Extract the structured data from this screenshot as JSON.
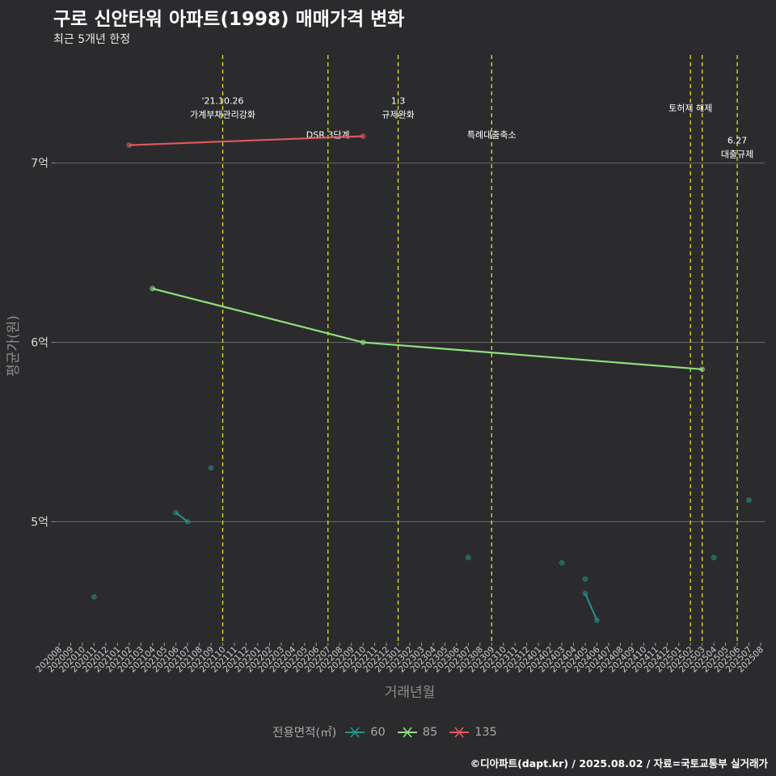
{
  "title": "구로 신안타워 아파트(1998) 매매가격 변화",
  "subtitle": "최근 5개년 한정",
  "caption": "©디아파트(dapt.kr) / 2025.08.02 / 자료=국토교통부 실거래가",
  "legend": {
    "title": "전용면적(㎡)",
    "items": [
      {
        "label": "60",
        "color": "#26938a"
      },
      {
        "label": "85",
        "color": "#8ee07e"
      },
      {
        "label": "135",
        "color": "#e0585e"
      }
    ]
  },
  "chart_data": {
    "type": "line",
    "xlabel": "거래년월",
    "ylabel": "평균가(원)",
    "x_categories": [
      "202008",
      "202009",
      "202010",
      "202011",
      "202012",
      "202101",
      "202102",
      "202103",
      "202104",
      "202105",
      "202106",
      "202107",
      "202108",
      "202109",
      "202110",
      "202111",
      "202112",
      "202201",
      "202202",
      "202203",
      "202204",
      "202205",
      "202206",
      "202207",
      "202208",
      "202209",
      "202210",
      "202211",
      "202212",
      "202301",
      "202302",
      "202303",
      "202304",
      "202305",
      "202306",
      "202307",
      "202308",
      "202309",
      "202310",
      "202311",
      "202312",
      "202401",
      "202402",
      "202403",
      "202404",
      "202405",
      "202406",
      "202407",
      "202408",
      "202409",
      "202410",
      "202411",
      "202412",
      "202501",
      "202502",
      "202503",
      "202504",
      "202505",
      "202506",
      "202507",
      "202508"
    ],
    "y_ticks": [
      {
        "value": 5,
        "label": "5억"
      },
      {
        "value": 6,
        "label": "6억"
      },
      {
        "value": 7,
        "label": "7억"
      }
    ],
    "y_range": [
      4.33,
      7.63
    ],
    "grid": "horizontal",
    "series": [
      {
        "name": "60",
        "color": "#26938a",
        "points": [
          {
            "x": "202011",
            "y": 4.58
          },
          {
            "x": "202106",
            "y": 5.05
          },
          {
            "x": "202107",
            "y": 5.0
          },
          {
            "x": "202109",
            "y": 5.3
          },
          {
            "x": "202307",
            "y": 4.8
          },
          {
            "x": "202403",
            "y": 4.77
          },
          {
            "x": "202405",
            "y": 4.68
          },
          {
            "x": "202405",
            "y": 4.6
          },
          {
            "x": "202406",
            "y": 4.45
          },
          {
            "x": "202504",
            "y": 4.8
          },
          {
            "x": "202507",
            "y": 5.12
          }
        ],
        "segments": [
          [
            "202106",
            "202107"
          ],
          [
            "202405",
            "202406"
          ]
        ]
      },
      {
        "name": "85",
        "color": "#8ee07e",
        "points": [
          {
            "x": "202104",
            "y": 6.3
          },
          {
            "x": "202210",
            "y": 6.0
          },
          {
            "x": "202503",
            "y": 5.85
          }
        ]
      },
      {
        "name": "135",
        "color": "#e0585e",
        "points": [
          {
            "x": "202102",
            "y": 7.1
          },
          {
            "x": "202210",
            "y": 7.15
          }
        ]
      }
    ],
    "annotations": [
      {
        "x": "202110",
        "lines": [
          "'21.10.26",
          "가계부채관리강화"
        ],
        "text_y": 7.33
      },
      {
        "x": "202207",
        "lines": [
          "DSR 3단계"
        ],
        "text_y": 7.14
      },
      {
        "x": "202301",
        "lines": [
          "1.3",
          "규제완화"
        ],
        "text_y": 7.33
      },
      {
        "x": "202309",
        "lines": [
          "특례대출축소"
        ],
        "text_y": 7.14
      },
      {
        "x": "202502",
        "lines": [
          "토허제 해제"
        ],
        "text_y": 7.29
      },
      {
        "x": "202503",
        "lines": [],
        "text_y": 7.29
      },
      {
        "x": "202506",
        "lines": [
          "6.27",
          "대출규제"
        ],
        "text_y": 7.11
      }
    ]
  }
}
